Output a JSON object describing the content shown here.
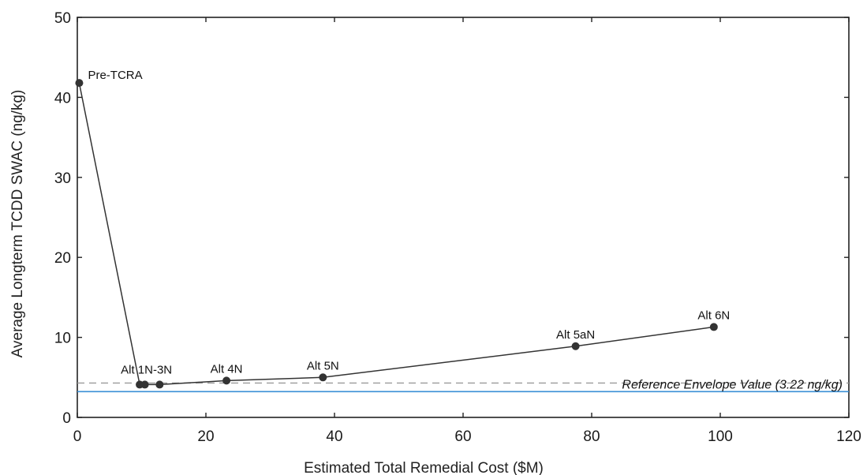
{
  "chart_data": {
    "type": "line",
    "title": "",
    "xlabel": "Estimated Total Remedial Cost ($M)",
    "ylabel": "Average Longterm TCDD SWAC (ng/kg)",
    "xlim": [
      0,
      120
    ],
    "ylim": [
      0,
      50
    ],
    "x_ticks": [
      0,
      20,
      40,
      60,
      80,
      100,
      120
    ],
    "y_ticks": [
      0,
      10,
      20,
      30,
      40,
      50
    ],
    "grid": false,
    "legend": "none",
    "series": [
      {
        "points": [
          {
            "x": 0.3,
            "y": 41.8,
            "label": "Pre-TCRA"
          },
          {
            "x": 9.7,
            "y": 4.1,
            "label": ""
          },
          {
            "x": 10.5,
            "y": 4.1,
            "label": ""
          },
          {
            "x": 12.8,
            "y": 4.1,
            "label": ""
          },
          {
            "x": 23.2,
            "y": 4.6,
            "label": "Alt 4N"
          },
          {
            "x": 38.2,
            "y": 5.0,
            "label": "Alt 5N"
          },
          {
            "x": 77.5,
            "y": 8.9,
            "label": "Alt 5aN"
          },
          {
            "x": 99.0,
            "y": 11.3,
            "label": "Alt 6N"
          }
        ],
        "color": "#333333"
      }
    ],
    "annotations": [
      {
        "text": "Alt 1N-3N",
        "x": 11,
        "y": 4.1
      }
    ],
    "reference_lines": [
      {
        "y": 3.22,
        "style": "solid",
        "color": "#3a8fd6",
        "label": "Reference Envelope Value (3.22 ng/kg)"
      },
      {
        "y": 4.3,
        "style": "dashed",
        "color": "#9a9a9a",
        "label": ""
      }
    ]
  }
}
